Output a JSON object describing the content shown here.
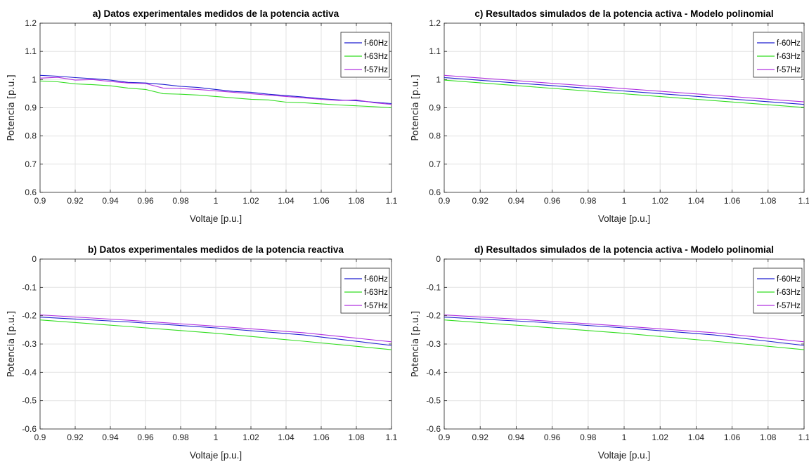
{
  "chart_data": [
    {
      "type": "line",
      "title": "a) Datos experimentales medidos de la potencia activa",
      "xlabel": "Voltaje [p.u.]",
      "ylabel": "Potencia [p.u.]",
      "xlim": [
        0.9,
        1.1
      ],
      "ylim": [
        0.6,
        1.2
      ],
      "xticks": [
        0.9,
        0.92,
        0.94,
        0.96,
        0.98,
        1,
        1.02,
        1.04,
        1.06,
        1.08,
        1.1
      ],
      "xtick_labels": [
        "0.9",
        "0.92",
        "0.94",
        "0.96",
        "0.98",
        "1",
        "1.02",
        "1.04",
        "1.06",
        "1.08",
        "1.1"
      ],
      "yticks": [
        0.6,
        0.7,
        0.8,
        0.9,
        1,
        1.1,
        1.2
      ],
      "ytick_labels": [
        "0.6",
        "0.7",
        "0.8",
        "0.9",
        "1",
        "1.1",
        "1.2"
      ],
      "grid": true,
      "legend_position": "top-right",
      "x": [
        0.9,
        0.91,
        0.92,
        0.93,
        0.94,
        0.95,
        0.96,
        0.97,
        0.98,
        0.99,
        1.0,
        1.01,
        1.02,
        1.03,
        1.04,
        1.05,
        1.06,
        1.07,
        1.08,
        1.09,
        1.1
      ],
      "series": [
        {
          "name": "f-60Hz",
          "color": "#1f1fd0",
          "values": [
            1.015,
            1.012,
            1.007,
            1.003,
            0.998,
            0.99,
            0.988,
            0.983,
            0.976,
            0.972,
            0.965,
            0.958,
            0.955,
            0.948,
            0.943,
            0.938,
            0.932,
            0.928,
            0.925,
            0.92,
            0.915
          ]
        },
        {
          "name": "f-63Hz",
          "color": "#33dd22",
          "values": [
            0.995,
            0.992,
            0.985,
            0.982,
            0.978,
            0.97,
            0.965,
            0.95,
            0.948,
            0.945,
            0.94,
            0.935,
            0.93,
            0.928,
            0.92,
            0.918,
            0.914,
            0.91,
            0.907,
            0.904,
            0.9
          ]
        },
        {
          "name": "f-57Hz",
          "color": "#b030e0",
          "values": [
            1.005,
            1.008,
            0.998,
            1.0,
            0.993,
            0.988,
            0.986,
            0.97,
            0.968,
            0.965,
            0.96,
            0.955,
            0.95,
            0.945,
            0.94,
            0.935,
            0.93,
            0.926,
            0.928,
            0.918,
            0.912
          ]
        }
      ]
    },
    {
      "type": "line",
      "title": "c) Resultados simulados de la potencia activa - Modelo polinomial",
      "xlabel": "Voltaje [p.u.]",
      "ylabel": "Potencia [p.u.]",
      "xlim": [
        0.9,
        1.1
      ],
      "ylim": [
        0.6,
        1.2
      ],
      "xticks": [
        0.9,
        0.92,
        0.94,
        0.96,
        0.98,
        1,
        1.02,
        1.04,
        1.06,
        1.08,
        1.1
      ],
      "xtick_labels": [
        "0.9",
        "0.92",
        "0.94",
        "0.96",
        "0.98",
        "1",
        "1.02",
        "1.04",
        "1.06",
        "1.08",
        "1.1"
      ],
      "yticks": [
        0.6,
        0.7,
        0.8,
        0.9,
        1,
        1.1,
        1.2
      ],
      "ytick_labels": [
        "0.6",
        "0.7",
        "0.8",
        "0.9",
        "1",
        "1.1",
        "1.2"
      ],
      "grid": true,
      "legend_position": "top-right",
      "x": [
        0.9,
        1.1
      ],
      "series": [
        {
          "name": "f-60Hz",
          "color": "#1f1fd0",
          "values": [
            1.007,
            0.912
          ]
        },
        {
          "name": "f-63Hz",
          "color": "#33dd22",
          "values": [
            0.998,
            0.901
          ]
        },
        {
          "name": "f-57Hz",
          "color": "#b030e0",
          "values": [
            1.015,
            0.921
          ]
        }
      ]
    },
    {
      "type": "line",
      "title": "b) Datos experimentales medidos de la potencia reactiva",
      "xlabel": "Voltaje [p.u.]",
      "ylabel": "Potencia [p.u.]",
      "xlim": [
        0.9,
        1.1
      ],
      "ylim": [
        -0.6,
        0
      ],
      "xticks": [
        0.9,
        0.92,
        0.94,
        0.96,
        0.98,
        1,
        1.02,
        1.04,
        1.06,
        1.08,
        1.1
      ],
      "xtick_labels": [
        "0.9",
        "0.92",
        "0.94",
        "0.96",
        "0.98",
        "1",
        "1.02",
        "1.04",
        "1.06",
        "1.08",
        "1.1"
      ],
      "yticks": [
        -0.6,
        -0.5,
        -0.4,
        -0.3,
        -0.2,
        -0.1,
        0
      ],
      "ytick_labels": [
        "-0.6",
        "-0.5",
        "-0.4",
        "-0.3",
        "-0.2",
        "-0.1",
        "0"
      ],
      "grid": true,
      "legend_position": "top-right",
      "x": [
        0.9,
        0.95,
        1.0,
        1.05,
        1.1
      ],
      "series": [
        {
          "name": "f-60Hz",
          "color": "#1f1fd0",
          "values": [
            -0.205,
            -0.222,
            -0.243,
            -0.268,
            -0.305
          ]
        },
        {
          "name": "f-63Hz",
          "color": "#33dd22",
          "values": [
            -0.215,
            -0.238,
            -0.262,
            -0.29,
            -0.32
          ]
        },
        {
          "name": "f-57Hz",
          "color": "#b030e0",
          "values": [
            -0.197,
            -0.216,
            -0.237,
            -0.26,
            -0.292
          ]
        }
      ]
    },
    {
      "type": "line",
      "title": "d) Resultados simulados de la potencia activa - Modelo polinomial",
      "xlabel": "Voltaje [p.u.]",
      "ylabel": "Potencia [p.u.]",
      "xlim": [
        0.9,
        1.1
      ],
      "ylim": [
        -0.6,
        0
      ],
      "xticks": [
        0.9,
        0.92,
        0.94,
        0.96,
        0.98,
        1,
        1.02,
        1.04,
        1.06,
        1.08,
        1.1
      ],
      "xtick_labels": [
        "0.9",
        "0.92",
        "0.94",
        "0.96",
        "0.98",
        "1",
        "1.02",
        "1.04",
        "1.06",
        "1.08",
        "1.1"
      ],
      "yticks": [
        -0.6,
        -0.5,
        -0.4,
        -0.3,
        -0.2,
        -0.1,
        0
      ],
      "ytick_labels": [
        "-0.6",
        "-0.5",
        "-0.4",
        "-0.3",
        "-0.2",
        "-0.1",
        "0"
      ],
      "grid": true,
      "legend_position": "top-right",
      "x": [
        0.9,
        0.95,
        1.0,
        1.05,
        1.1
      ],
      "series": [
        {
          "name": "f-60Hz",
          "color": "#1f1fd0",
          "values": [
            -0.205,
            -0.222,
            -0.243,
            -0.268,
            -0.305
          ]
        },
        {
          "name": "f-63Hz",
          "color": "#33dd22",
          "values": [
            -0.215,
            -0.238,
            -0.262,
            -0.29,
            -0.32
          ]
        },
        {
          "name": "f-57Hz",
          "color": "#b030e0",
          "values": [
            -0.197,
            -0.216,
            -0.237,
            -0.26,
            -0.292
          ]
        }
      ]
    }
  ]
}
